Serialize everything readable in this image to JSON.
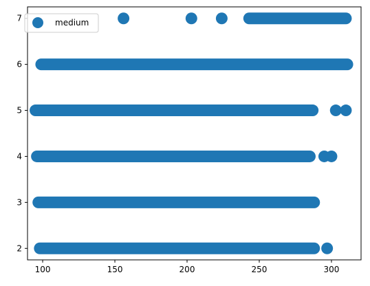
{
  "chart_data": {
    "type": "scatter",
    "title": "",
    "xlabel": "",
    "ylabel": "",
    "xlim": [
      89.5,
      320.5
    ],
    "ylim": [
      1.75,
      7.25
    ],
    "xticks": [
      100,
      150,
      200,
      250,
      300
    ],
    "yticks": [
      2,
      3,
      4,
      5,
      6,
      7
    ],
    "grid": false,
    "legend": {
      "placement": "top-left",
      "entries": [
        "medium"
      ]
    },
    "series": [
      {
        "name": "medium",
        "color": "#1f77b4",
        "marker": "circle",
        "bands": [
          {
            "y": 2,
            "dense": [
              98,
              288
            ],
            "extra": [
              297
            ]
          },
          {
            "y": 3,
            "dense": [
              97,
              288
            ],
            "extra": []
          },
          {
            "y": 4,
            "dense": [
              96,
              285
            ],
            "extra": [
              295,
              300
            ]
          },
          {
            "y": 5,
            "dense": [
              95,
              287
            ],
            "extra": [
              303,
              310
            ]
          },
          {
            "y": 6,
            "dense": [
              99,
              311
            ],
            "extra": []
          },
          {
            "y": 7,
            "dense": [
              243,
              310
            ],
            "extra": [
              156,
              203,
              224
            ]
          }
        ]
      }
    ]
  }
}
